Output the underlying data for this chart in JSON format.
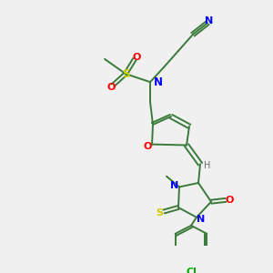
{
  "background_color": "#f0f0f0",
  "bond_color": "#3a7a3a",
  "atom_colors": {
    "N": "#0000ff",
    "O": "#ff0000",
    "S": "#cccc00",
    "Cl": "#00aa00",
    "C": "#3a7a3a",
    "H": "#607060"
  },
  "figsize": [
    3.0,
    3.0
  ],
  "dpi": 100
}
